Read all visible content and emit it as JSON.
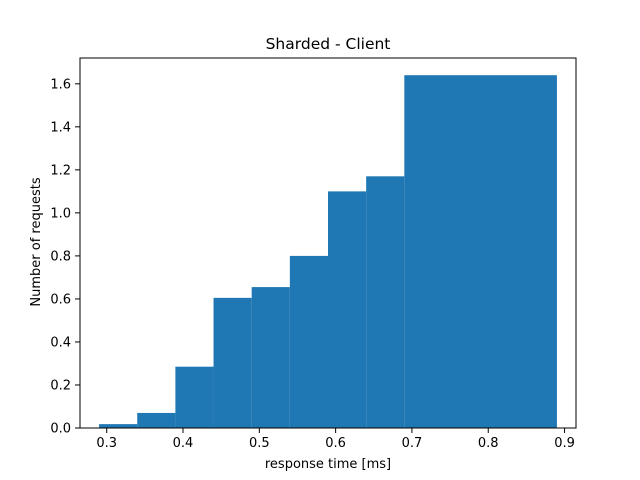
{
  "chart_data": {
    "type": "bar",
    "title": "Sharded - Client",
    "xlabel": "response time [ms]",
    "ylabel": "Number of requests",
    "xlim": [
      0.265,
      0.915
    ],
    "ylim": [
      0.0,
      1.72
    ],
    "x_ticks": [
      "0.3",
      "0.4",
      "0.5",
      "0.6",
      "0.7",
      "0.8",
      "0.9"
    ],
    "y_ticks": [
      "0.0",
      "0.2",
      "0.4",
      "0.6",
      "0.8",
      "1.0",
      "1.2",
      "1.4",
      "1.6"
    ],
    "bar_color": "#1f77b4",
    "grid": false,
    "bins": [
      {
        "x0": 0.29,
        "x1": 0.34,
        "value": 0.018
      },
      {
        "x0": 0.34,
        "x1": 0.39,
        "value": 0.07
      },
      {
        "x0": 0.39,
        "x1": 0.44,
        "value": 0.285
      },
      {
        "x0": 0.44,
        "x1": 0.49,
        "value": 0.605
      },
      {
        "x0": 0.49,
        "x1": 0.54,
        "value": 0.655
      },
      {
        "x0": 0.54,
        "x1": 0.59,
        "value": 0.8
      },
      {
        "x0": 0.59,
        "x1": 0.64,
        "value": 1.1
      },
      {
        "x0": 0.64,
        "x1": 0.69,
        "value": 1.17
      },
      {
        "x0": 0.69,
        "x1": 0.89,
        "value": 1.64
      }
    ]
  }
}
